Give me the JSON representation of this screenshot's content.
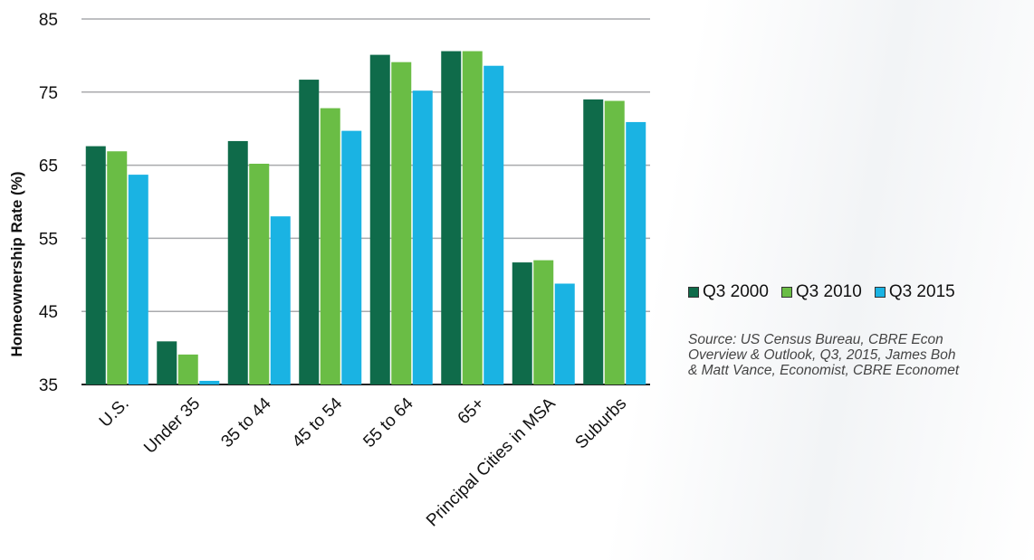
{
  "chart_data": {
    "type": "bar",
    "title": "",
    "xlabel": "",
    "ylabel": "Homeownership Rate (%)",
    "ylim": [
      35,
      85
    ],
    "yticks": [
      35,
      45,
      55,
      65,
      75,
      85
    ],
    "grid": true,
    "legend_position": "right",
    "categories": [
      "U.S.",
      "Under 35",
      "35 to 44",
      "45 to 54",
      "55 to 64",
      "65+",
      "Principal Cities in MSA",
      "Suburbs"
    ],
    "series": [
      {
        "name": "Q3 2000",
        "color": "#0f6b4a",
        "values": [
          67.6,
          40.9,
          68.3,
          76.7,
          80.1,
          80.6,
          51.7,
          74.0
        ]
      },
      {
        "name": "Q3 2010",
        "color": "#6abd45",
        "values": [
          66.9,
          39.1,
          65.2,
          72.8,
          79.1,
          80.6,
          52.0,
          73.8
        ]
      },
      {
        "name": "Q3 2015",
        "color": "#1ab3e3",
        "values": [
          63.7,
          35.5,
          58.0,
          69.7,
          75.2,
          78.6,
          48.8,
          70.9
        ]
      }
    ]
  },
  "source_lines": [
    "Source: US Census Bureau, CBRE Econ",
    "Overview & Outlook, Q3, 2015, James Boh",
    "& Matt Vance, Economist, CBRE Economet"
  ]
}
